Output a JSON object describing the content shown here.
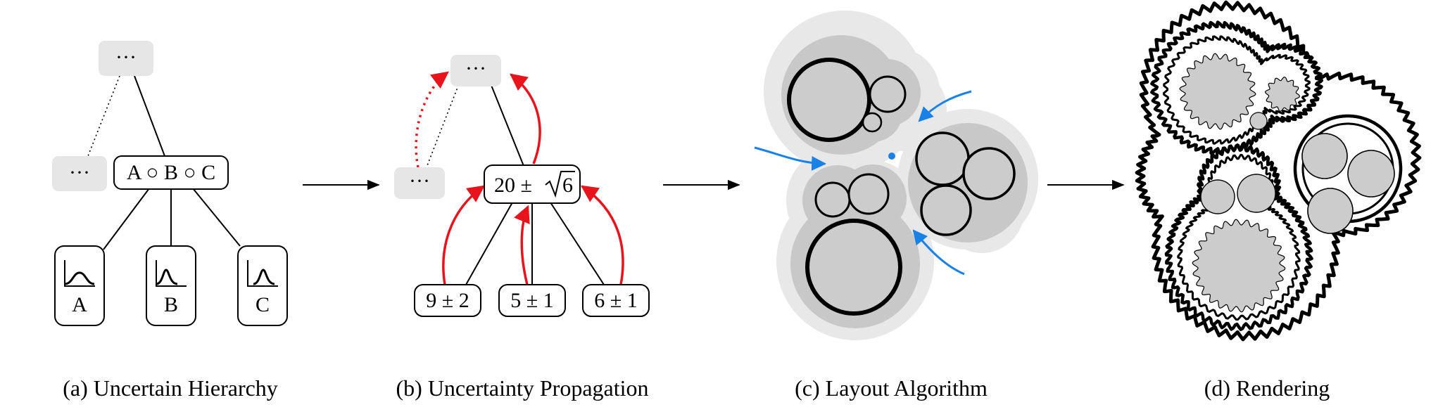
{
  "panels": [
    {
      "caption": "(a) Uncertain Hierarchy",
      "nodes": {
        "top": "···",
        "left": "···",
        "center": "A ○ B ○ C",
        "leaves": [
          "A",
          "B",
          "C"
        ]
      }
    },
    {
      "caption": "(b) Uncertainty Propagation",
      "nodes": {
        "top": "···",
        "left": "···",
        "center_prefix": "20 ±",
        "center_radicand": "6",
        "leaves": [
          "9 ± 2",
          "5 ± 1",
          "6 ± 1"
        ]
      }
    },
    {
      "caption": "(c) Layout Algorithm"
    },
    {
      "caption": "(d) Rendering"
    }
  ],
  "colors": {
    "node_fill_gray": "#e6e6e6",
    "propagation_red": "#e8141c",
    "arrow_blue": "#1a82e6",
    "halo_light": "#e8e8e8",
    "halo_mid": "#c8c8c8",
    "circle_fill": "#cccccc"
  }
}
